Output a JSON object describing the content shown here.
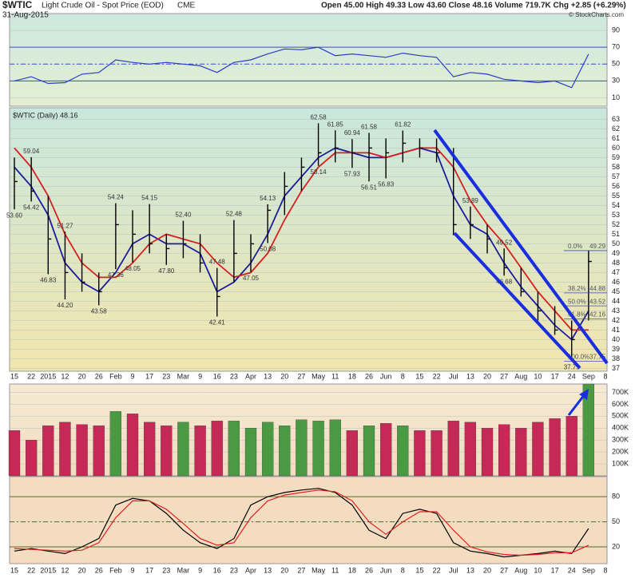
{
  "header": {
    "symbol": "$WTIC",
    "title": "Light Crude Oil - Spot Price (EOD)",
    "exchange": "CME",
    "date": "31-Aug-2015",
    "stats": "Open 45.00  High 49.33  Low 43.60  Close 48.16  Volume 719.7K  Chg +2.85 (+6.29%)",
    "credit": "© StockCharts.com"
  },
  "chart_data": [
    {
      "type": "line",
      "color": "#2a3cc8",
      "values": [
        30,
        35,
        27,
        28,
        38,
        40,
        55,
        52,
        50,
        52,
        50,
        48,
        40,
        52,
        55,
        62,
        68,
        67,
        70,
        60,
        62,
        60,
        58,
        63,
        60,
        58,
        35,
        40,
        38,
        32,
        30,
        28,
        30,
        22,
        62,
        null
      ],
      "ylim": [
        0,
        110
      ],
      "yticks": [
        10,
        30,
        50,
        70,
        90
      ],
      "bands": [
        30,
        70
      ],
      "midline": 50
    },
    {
      "type": "ohlc",
      "label": "$WTIC (Daily) 48.16",
      "color": "#000000",
      "categories": [
        "15",
        "22",
        "2015",
        "12",
        "20",
        "26",
        "Feb",
        "9",
        "17",
        "23",
        "Mar",
        "9",
        "16",
        "23",
        "Apr",
        "13",
        "20",
        "27",
        "May",
        "11",
        "18",
        "26",
        "Jun",
        "8",
        "15",
        "22",
        "Jul",
        "13",
        "20",
        "27",
        "Aug",
        "10",
        "17",
        "24",
        "Sep",
        "8"
      ],
      "high": [
        59.0,
        59.04,
        55.0,
        51.27,
        49.0,
        47.0,
        54.24,
        53.5,
        54.15,
        51.0,
        52.4,
        51.0,
        47.48,
        52.48,
        51.0,
        54.13,
        57.5,
        59.0,
        62.58,
        61.85,
        60.94,
        61.58,
        61.0,
        61.82,
        61.0,
        61.0,
        60.0,
        53.89,
        52.0,
        49.52,
        47.5,
        45.0,
        43.5,
        42.0,
        49.33,
        null
      ],
      "low": [
        53.6,
        54.42,
        46.83,
        44.2,
        45.0,
        43.58,
        47.36,
        48.05,
        49.0,
        47.8,
        48.5,
        47.0,
        42.41,
        46.0,
        47.05,
        50.08,
        53.0,
        55.5,
        58.14,
        58.5,
        57.93,
        56.51,
        56.83,
        58.5,
        59.0,
        58.5,
        50.9,
        50.5,
        49.0,
        46.68,
        44.5,
        42.0,
        40.5,
        37.75,
        42.0,
        null
      ],
      "close": [
        56.5,
        55.5,
        50.5,
        47.0,
        46.0,
        45.0,
        52.0,
        51.0,
        50.0,
        49.5,
        50.0,
        48.0,
        44.5,
        49.0,
        50.0,
        53.5,
        56.0,
        58.0,
        59.5,
        60.0,
        59.5,
        60.0,
        59.5,
        60.5,
        60.0,
        59.5,
        52.0,
        52.0,
        50.5,
        47.5,
        45.0,
        43.0,
        41.0,
        40.0,
        48.16,
        null
      ],
      "high_labels": [
        null,
        "59.04",
        null,
        "51.27",
        null,
        null,
        "54.24",
        null,
        "54.15",
        null,
        "52.40",
        null,
        "47.48",
        "52.48",
        null,
        "54.13",
        null,
        null,
        "62.58",
        "61.85",
        "60.94",
        "61.58",
        null,
        "61.82",
        null,
        null,
        null,
        "53.89",
        null,
        "49.52",
        null,
        null,
        null,
        null,
        null,
        null
      ],
      "low_labels": [
        "53.60",
        "54.42",
        "46.83",
        "44.20",
        null,
        "43.58",
        "47.36",
        "48.05",
        null,
        "47.80",
        null,
        null,
        "42.41",
        null,
        "47.05",
        "50.08",
        null,
        null,
        "58.14",
        null,
        "57.93",
        "56.51",
        "56.83",
        null,
        null,
        null,
        null,
        null,
        null,
        "46.68",
        null,
        null,
        null,
        "37.75",
        null,
        null
      ],
      "series": [
        {
          "color": "#1c1c9c",
          "values": [
            58,
            56,
            53,
            48,
            46,
            45,
            47,
            50,
            51,
            50,
            50,
            49,
            45,
            46,
            48,
            51,
            55,
            57,
            59,
            60,
            59.5,
            59,
            59,
            59.5,
            60,
            59.5,
            55,
            52,
            51,
            48,
            45.5,
            43.5,
            41.5,
            40,
            43,
            null
          ]
        },
        {
          "color": "#d42020",
          "values": [
            60,
            58,
            55,
            51,
            48,
            46.5,
            46.5,
            48,
            50,
            51,
            50.5,
            50,
            48,
            46.5,
            47,
            49,
            52.5,
            55.5,
            58,
            59.5,
            59.5,
            59.5,
            59,
            59.5,
            60,
            60,
            58,
            54.5,
            52,
            50,
            47.5,
            45,
            43,
            41,
            41,
            null
          ]
        }
      ],
      "fib_levels": [
        {
          "label": "0.0%",
          "value": 49.29
        },
        {
          "label": "38.2%",
          "value": 44.88
        },
        {
          "label": "50.0%",
          "value": 43.52
        },
        {
          "label": "61.8%",
          "value": 42.16
        },
        {
          "label": "100.0%",
          "value": 37.75
        }
      ],
      "ylim": [
        36.7,
        64.2
      ],
      "yticks": [
        37,
        38,
        39,
        40,
        41,
        42,
        43,
        44,
        45,
        46,
        47,
        48,
        49,
        50,
        51,
        52,
        53,
        54,
        55,
        56,
        57,
        58,
        59,
        60,
        61,
        62,
        63
      ]
    },
    {
      "type": "bar",
      "up_color": "#4a9a44",
      "down_color": "#c42a55",
      "values": [
        380000,
        300000,
        420000,
        450000,
        430000,
        420000,
        540000,
        520000,
        450000,
        420000,
        450000,
        420000,
        460000,
        460000,
        400000,
        450000,
        420000,
        470000,
        460000,
        470000,
        380000,
        420000,
        440000,
        420000,
        380000,
        380000,
        460000,
        450000,
        400000,
        430000,
        400000,
        450000,
        480000,
        500000,
        770000,
        null
      ],
      "ylim": [
        0,
        770000
      ],
      "yticks": [
        {
          "value": 100000,
          "label": "100K"
        },
        {
          "value": 200000,
          "label": "200K"
        },
        {
          "value": 300000,
          "label": "300K"
        },
        {
          "value": 400000,
          "label": "400K"
        },
        {
          "value": 500000,
          "label": "500K"
        },
        {
          "value": 600000,
          "label": "600K"
        },
        {
          "value": 700000,
          "label": "700K"
        }
      ]
    },
    {
      "type": "line",
      "series": [
        {
          "color": "#000000",
          "values": [
            15,
            18,
            15,
            12,
            20,
            30,
            70,
            78,
            75,
            60,
            40,
            25,
            18,
            30,
            70,
            80,
            85,
            88,
            90,
            85,
            70,
            40,
            30,
            60,
            65,
            60,
            25,
            15,
            12,
            8,
            10,
            12,
            15,
            12,
            42,
            null
          ]
        },
        {
          "color": "#e02020",
          "values": [
            18,
            17,
            16,
            15,
            16,
            25,
            55,
            75,
            75,
            65,
            48,
            30,
            22,
            25,
            55,
            75,
            82,
            85,
            88,
            86,
            75,
            50,
            35,
            50,
            62,
            62,
            40,
            20,
            14,
            11,
            10,
            11,
            13,
            13,
            22,
            null
          ]
        }
      ],
      "ylim": [
        0,
        104
      ],
      "yticks": [
        20,
        50,
        80
      ],
      "bands": [
        20,
        80
      ],
      "midline": 50
    }
  ]
}
